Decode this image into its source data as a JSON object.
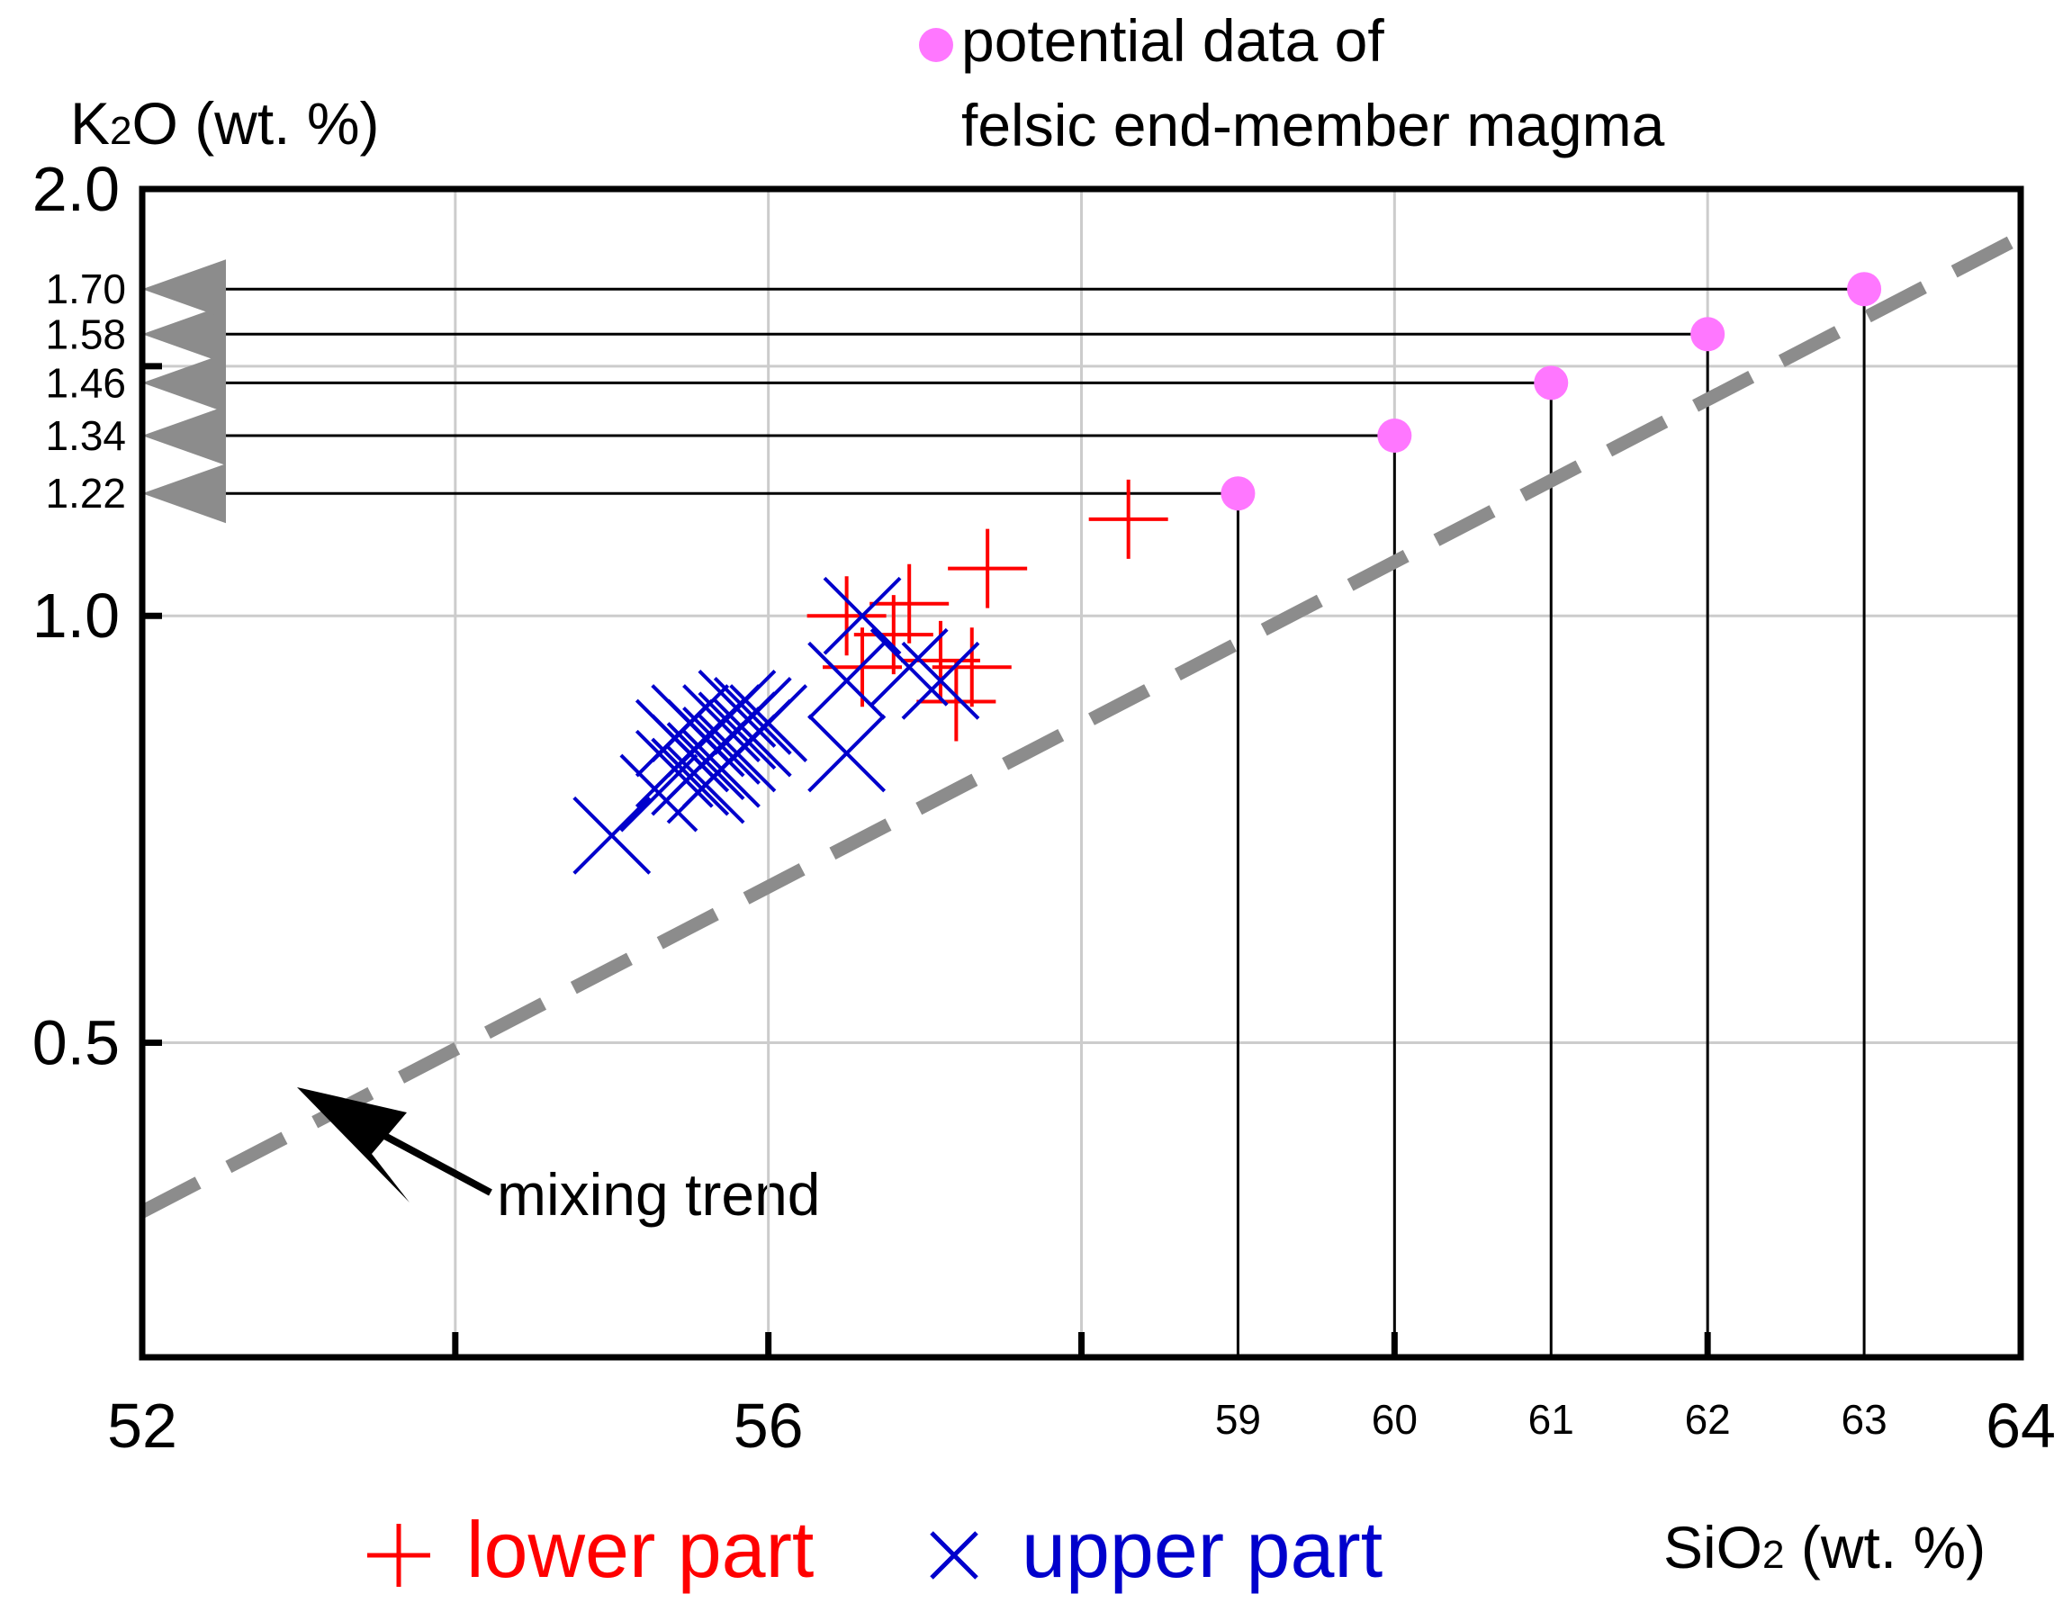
{
  "chart_data": {
    "type": "scatter",
    "x_scale": "linear",
    "y_scale": "log",
    "xlim": [
      52,
      64
    ],
    "ylim": [
      0.3,
      2.0
    ],
    "grid": true,
    "ylabel_main": "K",
    "ylabel_sub": "2",
    "ylabel_rest": "O (wt. %)",
    "xlabel_main": "SiO",
    "xlabel_sub": "2",
    "xlabel_rest": " (wt. %)",
    "x_ticks": [
      {
        "value": 52,
        "label": "52",
        "major": true
      },
      {
        "value": 54,
        "label": "",
        "major": false
      },
      {
        "value": 56,
        "label": "56",
        "major": true
      },
      {
        "value": 58,
        "label": "",
        "major": false
      },
      {
        "value": 60,
        "label": "",
        "major": false
      },
      {
        "value": 62,
        "label": "",
        "major": false
      },
      {
        "value": 64,
        "label": "64",
        "major": true
      }
    ],
    "y_ticks": [
      {
        "value": 2.0,
        "label": "2.0"
      },
      {
        "value": 1.0,
        "label": "1.0"
      },
      {
        "value": 0.5,
        "label": "0.5"
      }
    ],
    "x_grid": [
      54,
      56,
      58,
      60,
      62
    ],
    "y_grid": [
      2.0,
      1.5,
      1.0,
      0.5
    ],
    "colors": {
      "lower": "#ff0000",
      "upper": "#0000cc",
      "felsic": "#ff77ff",
      "trend": "#8c8c8c",
      "arrow": "#8c8c8c",
      "axis": "#000000",
      "grid": "#cccccc"
    },
    "trend_line": {
      "label": "mixing trend",
      "x": [
        52,
        64
      ],
      "y": [
        0.38,
        1.85
      ]
    },
    "felsic_points": [
      {
        "x": 59,
        "y": 1.22,
        "x_label": "59",
        "y_label": "1.22"
      },
      {
        "x": 60,
        "y": 1.34,
        "x_label": "60",
        "y_label": "1.34"
      },
      {
        "x": 61,
        "y": 1.46,
        "x_label": "61",
        "y_label": "1.46"
      },
      {
        "x": 62,
        "y": 1.58,
        "x_label": "62",
        "y_label": "1.58"
      },
      {
        "x": 63,
        "y": 1.7,
        "x_label": "63",
        "y_label": "1.70"
      }
    ],
    "series": [
      {
        "name": "lower part",
        "marker": "plus",
        "points": [
          [
            58.3,
            1.17
          ],
          [
            57.4,
            1.08
          ],
          [
            56.5,
            1.0
          ],
          [
            56.9,
            1.02
          ],
          [
            56.8,
            0.97
          ],
          [
            57.3,
            0.92
          ],
          [
            56.6,
            0.92
          ],
          [
            57.1,
            0.93
          ],
          [
            57.2,
            0.87
          ]
        ]
      },
      {
        "name": "upper part",
        "marker": "cross",
        "points": [
          [
            55.0,
            0.7
          ],
          [
            55.3,
            0.75
          ],
          [
            55.4,
            0.78
          ],
          [
            55.5,
            0.8
          ],
          [
            55.5,
            0.77
          ],
          [
            55.6,
            0.82
          ],
          [
            55.6,
            0.79
          ],
          [
            55.7,
            0.81
          ],
          [
            55.7,
            0.84
          ],
          [
            55.8,
            0.8
          ],
          [
            55.8,
            0.83
          ],
          [
            55.9,
            0.82
          ],
          [
            55.9,
            0.85
          ],
          [
            56.0,
            0.84
          ],
          [
            55.4,
            0.82
          ],
          [
            55.6,
            0.76
          ],
          [
            55.8,
            0.86
          ],
          [
            56.5,
            0.8
          ],
          [
            56.5,
            0.9
          ],
          [
            56.6,
            1.0
          ],
          [
            56.9,
            0.92
          ],
          [
            57.1,
            0.9
          ],
          [
            55.7,
            0.78
          ],
          [
            55.5,
            0.84
          ]
        ]
      }
    ],
    "legend": {
      "lower_label": "lower part",
      "upper_label": "upper part",
      "felsic_label_line1": "potential data of",
      "felsic_label_line2": "felsic end-member magma",
      "placement": "bottom"
    }
  }
}
